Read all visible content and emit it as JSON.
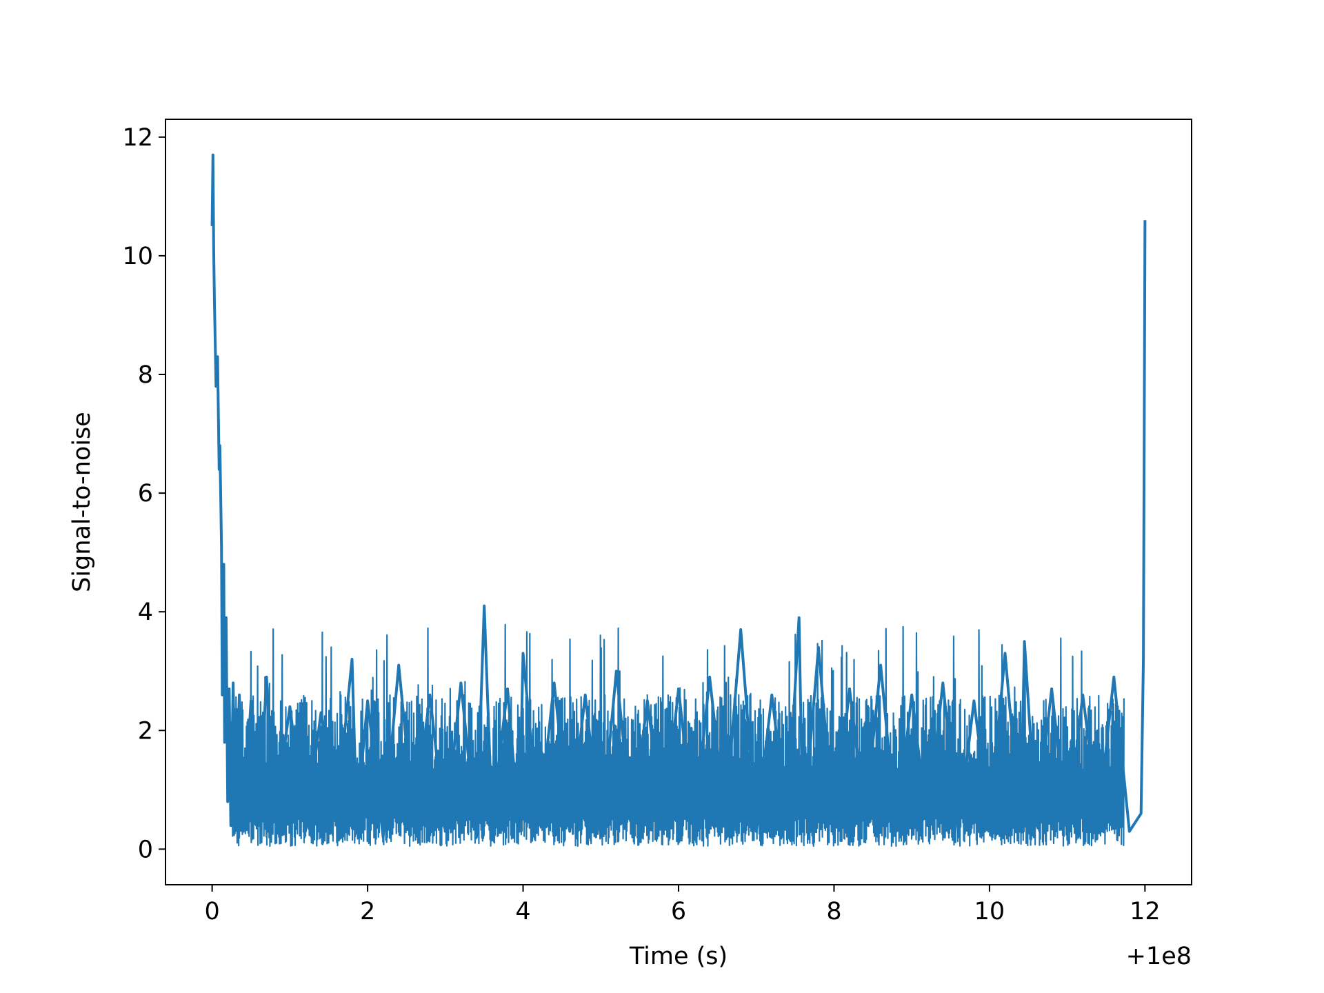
{
  "chart_data": {
    "type": "line",
    "title": "",
    "xlabel": "Time (s)",
    "ylabel": "Signal-to-noise",
    "x_offset_label": "+1e8",
    "xlim": [
      -0.6,
      12.6
    ],
    "ylim": [
      -0.6,
      12.3
    ],
    "x_ticks": [
      0,
      2,
      4,
      6,
      8,
      10,
      12
    ],
    "y_ticks": [
      0,
      2,
      4,
      6,
      8,
      10,
      12
    ],
    "grid": false,
    "line_color": "#1f77b4",
    "series": [
      {
        "x": [
          0.0,
          0.01,
          0.02,
          0.03,
          0.05,
          0.07,
          0.09,
          0.1,
          0.12,
          0.13,
          0.15,
          0.16,
          0.18,
          0.2,
          0.22,
          0.24,
          0.27,
          0.3,
          0.35,
          0.4,
          0.5,
          0.6,
          0.7,
          0.8,
          1.0,
          1.2,
          1.4,
          1.6,
          1.8,
          1.86,
          2.0,
          2.2,
          2.4,
          2.6,
          2.8,
          3.0,
          3.2,
          3.4,
          3.5,
          3.6,
          3.8,
          3.95,
          4.0,
          4.2,
          4.4,
          4.6,
          4.8,
          5.0,
          5.2,
          5.4,
          5.6,
          5.8,
          6.0,
          6.2,
          6.4,
          6.6,
          6.8,
          7.0,
          7.2,
          7.4,
          7.55,
          7.6,
          7.8,
          8.0,
          8.2,
          8.4,
          8.6,
          8.8,
          9.0,
          9.2,
          9.4,
          9.6,
          9.8,
          10.0,
          10.2,
          10.4,
          10.45,
          10.6,
          10.8,
          11.0,
          11.2,
          11.4,
          11.6,
          11.8,
          11.95,
          11.98,
          12.0
        ],
        "y": [
          10.5,
          11.7,
          10.1,
          9.2,
          7.8,
          8.3,
          6.4,
          6.8,
          5.1,
          2.6,
          4.8,
          1.8,
          3.9,
          0.8,
          2.7,
          0.4,
          2.8,
          0.5,
          2.6,
          0.3,
          2.5,
          0.4,
          2.9,
          0.5,
          2.4,
          0.3,
          2.3,
          0.6,
          3.2,
          0.5,
          2.5,
          0.2,
          3.1,
          0.4,
          2.6,
          0.3,
          2.8,
          0.2,
          4.1,
          0.5,
          2.7,
          0.3,
          3.3,
          0.4,
          2.8,
          0.3,
          2.6,
          0.2,
          3.0,
          0.4,
          2.5,
          0.3,
          2.7,
          0.3,
          2.9,
          0.5,
          3.7,
          0.3,
          2.6,
          0.4,
          3.9,
          0.3,
          3.4,
          0.3,
          2.7,
          0.5,
          3.1,
          0.3,
          2.6,
          0.4,
          2.8,
          0.3,
          2.5,
          0.4,
          3.3,
          0.3,
          3.5,
          0.4,
          2.7,
          0.3,
          2.6,
          0.5,
          2.9,
          0.3,
          0.6,
          3.2,
          10.6
        ]
      }
    ]
  }
}
